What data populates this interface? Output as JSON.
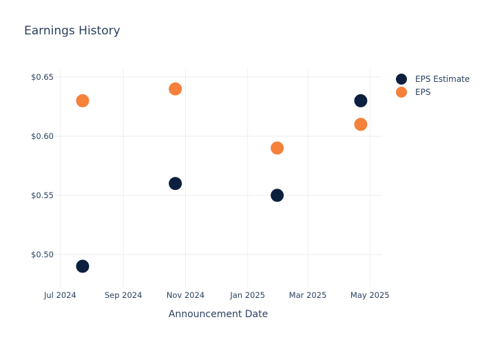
{
  "chart_data": {
    "type": "scatter",
    "title": "Earnings History",
    "xlabel": "Announcement Date",
    "ylabel": "",
    "x_ticks": [
      {
        "date": "2024-07-01",
        "label": "Jul 2024"
      },
      {
        "date": "2024-09-01",
        "label": "Sep 2024"
      },
      {
        "date": "2024-11-01",
        "label": "Nov 2024"
      },
      {
        "date": "2025-01-01",
        "label": "Jan 2025"
      },
      {
        "date": "2025-03-01",
        "label": "Mar 2025"
      },
      {
        "date": "2025-05-01",
        "label": "May 2025"
      }
    ],
    "y_ticks": [
      {
        "value": 0.5,
        "label": "$0.50"
      },
      {
        "value": 0.55,
        "label": "$0.55"
      },
      {
        "value": 0.6,
        "label": "$0.60"
      },
      {
        "value": 0.65,
        "label": "$0.65"
      }
    ],
    "xlim": [
      "2024-06-26",
      "2025-05-13"
    ],
    "ylim": [
      0.472,
      0.657
    ],
    "grid": true,
    "legend_position": "top-right",
    "series": [
      {
        "name": "EPS Estimate",
        "color": "#0d1f3f",
        "points": [
          {
            "x": "2024-07-23",
            "y": 0.49
          },
          {
            "x": "2024-10-22",
            "y": 0.56
          },
          {
            "x": "2025-01-30",
            "y": 0.55
          },
          {
            "x": "2025-04-22",
            "y": 0.63
          }
        ]
      },
      {
        "name": "EPS",
        "color": "#f5813b",
        "points": [
          {
            "x": "2024-07-23",
            "y": 0.63
          },
          {
            "x": "2024-10-22",
            "y": 0.64
          },
          {
            "x": "2025-01-30",
            "y": 0.59
          },
          {
            "x": "2025-04-22",
            "y": 0.61
          }
        ]
      }
    ]
  }
}
